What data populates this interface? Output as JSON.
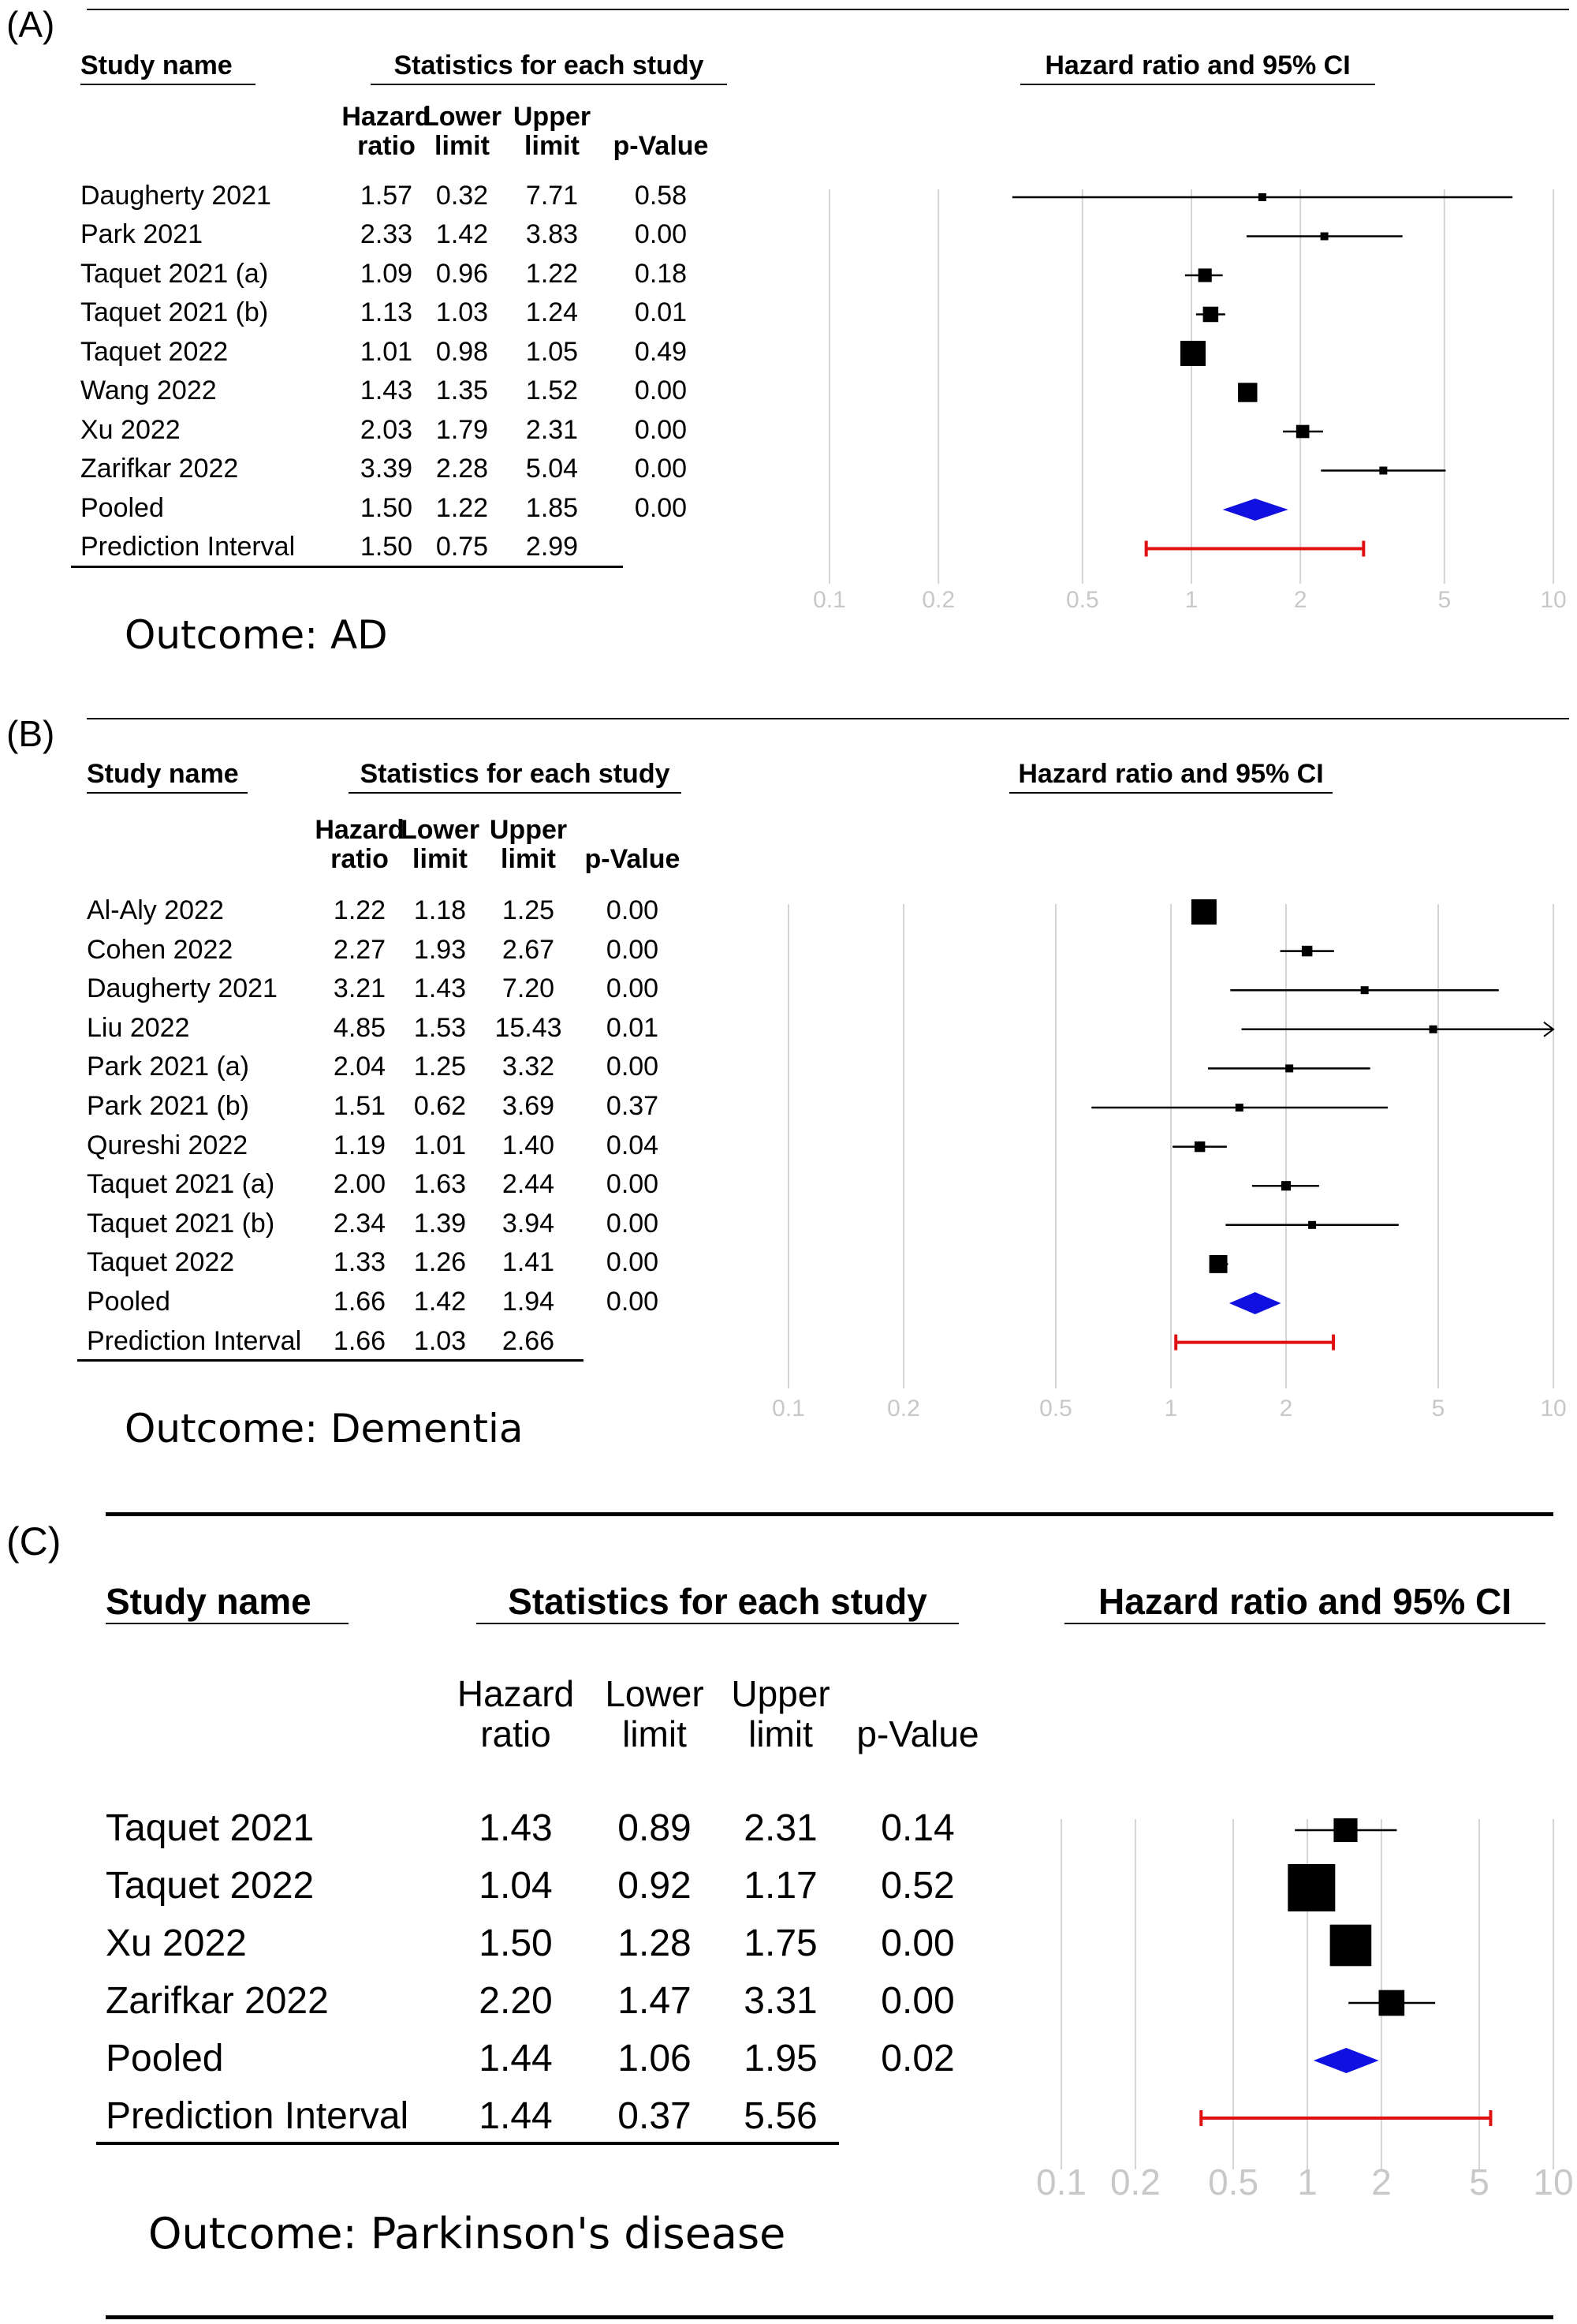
{
  "chart_data": [
    {
      "type": "forest",
      "panel_label": "(A)",
      "headers": {
        "study_name": "Study name",
        "statistics": "Statistics for each study",
        "plot": "Hazard ratio and 95% CI"
      },
      "columns": [
        [
          "Hazard",
          "ratio"
        ],
        [
          "Lower",
          "limit"
        ],
        [
          "Upper",
          "limit"
        ],
        [
          "",
          "p-Value"
        ]
      ],
      "rows": [
        {
          "name": "Daugherty 2021",
          "hr": "1.57",
          "lower": "0.32",
          "upper": "7.71",
          "p": "0.58"
        },
        {
          "name": "Park 2021",
          "hr": "2.33",
          "lower": "1.42",
          "upper": "3.83",
          "p": "0.00"
        },
        {
          "name": "Taquet 2021 (a)",
          "hr": "1.09",
          "lower": "0.96",
          "upper": "1.22",
          "p": "0.18"
        },
        {
          "name": "Taquet 2021 (b)",
          "hr": "1.13",
          "lower": "1.03",
          "upper": "1.24",
          "p": "0.01"
        },
        {
          "name": "Taquet 2022",
          "hr": "1.01",
          "lower": "0.98",
          "upper": "1.05",
          "p": "0.49"
        },
        {
          "name": "Wang 2022",
          "hr": "1.43",
          "lower": "1.35",
          "upper": "1.52",
          "p": "0.00"
        },
        {
          "name": "Xu 2022",
          "hr": "2.03",
          "lower": "1.79",
          "upper": "2.31",
          "p": "0.00"
        },
        {
          "name": "Zarifkar 2022",
          "hr": "3.39",
          "lower": "2.28",
          "upper": "5.04",
          "p": "0.00"
        },
        {
          "name": "Pooled",
          "hr": "1.50",
          "lower": "1.22",
          "upper": "1.85",
          "p": "0.00",
          "pooled": true
        },
        {
          "name": "Prediction Interval",
          "hr": "1.50",
          "lower": "0.75",
          "upper": "2.99",
          "p": "",
          "prediction": true
        }
      ],
      "x_scale": "log",
      "xlim": [
        0.1,
        10
      ],
      "x_ticks": [
        "0.1",
        "0.2",
        "0.5",
        "1",
        "2",
        "5",
        "10"
      ],
      "outcome": "Outcome: AD",
      "colors": {
        "pooled": "#1010e0",
        "prediction": "#e01010",
        "study": "#000000",
        "grid": "#d4d4d4"
      }
    },
    {
      "type": "forest",
      "panel_label": "(B)",
      "headers": {
        "study_name": "Study name",
        "statistics": "Statistics for each study",
        "plot": "Hazard ratio and 95% CI"
      },
      "columns": [
        [
          "Hazard",
          "ratio"
        ],
        [
          "Lower",
          "limit"
        ],
        [
          "Upper",
          "limit"
        ],
        [
          "",
          "p-Value"
        ]
      ],
      "rows": [
        {
          "name": "Al-Aly 2022",
          "hr": "1.22",
          "lower": "1.18",
          "upper": "1.25",
          "p": "0.00"
        },
        {
          "name": "Cohen 2022",
          "hr": "2.27",
          "lower": "1.93",
          "upper": "2.67",
          "p": "0.00"
        },
        {
          "name": "Daugherty 2021",
          "hr": "3.21",
          "lower": "1.43",
          "upper": "7.20",
          "p": "0.00"
        },
        {
          "name": "Liu 2022",
          "hr": "4.85",
          "lower": "1.53",
          "upper": "15.43",
          "p": "0.01"
        },
        {
          "name": "Park 2021 (a)",
          "hr": "2.04",
          "lower": "1.25",
          "upper": "3.32",
          "p": "0.00"
        },
        {
          "name": "Park 2021 (b)",
          "hr": "1.51",
          "lower": "0.62",
          "upper": "3.69",
          "p": "0.37"
        },
        {
          "name": "Qureshi 2022",
          "hr": "1.19",
          "lower": "1.01",
          "upper": "1.40",
          "p": "0.04"
        },
        {
          "name": "Taquet 2021 (a)",
          "hr": "2.00",
          "lower": "1.63",
          "upper": "2.44",
          "p": "0.00"
        },
        {
          "name": "Taquet 2021 (b)",
          "hr": "2.34",
          "lower": "1.39",
          "upper": "3.94",
          "p": "0.00"
        },
        {
          "name": "Taquet 2022",
          "hr": "1.33",
          "lower": "1.26",
          "upper": "1.41",
          "p": "0.00"
        },
        {
          "name": "Pooled",
          "hr": "1.66",
          "lower": "1.42",
          "upper": "1.94",
          "p": "0.00",
          "pooled": true
        },
        {
          "name": "Prediction Interval",
          "hr": "1.66",
          "lower": "1.03",
          "upper": "2.66",
          "p": "",
          "prediction": true
        }
      ],
      "x_scale": "log",
      "xlim": [
        0.1,
        10
      ],
      "x_ticks": [
        "0.1",
        "0.2",
        "0.5",
        "1",
        "2",
        "5",
        "10"
      ],
      "outcome": "Outcome: Dementia",
      "colors": {
        "pooled": "#1010e0",
        "prediction": "#e01010",
        "study": "#000000",
        "grid": "#d4d4d4"
      }
    },
    {
      "type": "forest",
      "panel_label": "(C)",
      "headers": {
        "study_name": "Study name",
        "statistics": "Statistics for each study",
        "plot": "Hazard ratio and 95% CI"
      },
      "columns": [
        [
          "Hazard",
          "ratio"
        ],
        [
          "Lower",
          "limit"
        ],
        [
          "Upper",
          "limit"
        ],
        [
          "",
          "p-Value"
        ]
      ],
      "rows": [
        {
          "name": "Taquet 2021",
          "hr": "1.43",
          "lower": "0.89",
          "upper": "2.31",
          "p": "0.14"
        },
        {
          "name": "Taquet 2022",
          "hr": "1.04",
          "lower": "0.92",
          "upper": "1.17",
          "p": "0.52"
        },
        {
          "name": "Xu 2022",
          "hr": "1.50",
          "lower": "1.28",
          "upper": "1.75",
          "p": "0.00"
        },
        {
          "name": "Zarifkar 2022",
          "hr": "2.20",
          "lower": "1.47",
          "upper": "3.31",
          "p": "0.00"
        },
        {
          "name": "Pooled",
          "hr": "1.44",
          "lower": "1.06",
          "upper": "1.95",
          "p": "0.02",
          "pooled": true
        },
        {
          "name": "Prediction Interval",
          "hr": "1.44",
          "lower": "0.37",
          "upper": "5.56",
          "p": "",
          "prediction": true
        }
      ],
      "x_scale": "log",
      "xlim": [
        0.1,
        10
      ],
      "x_ticks": [
        "0.1",
        "0.2",
        "0.5",
        "1",
        "2",
        "5",
        "10"
      ],
      "outcome": "Outcome: Parkinson's disease",
      "colors": {
        "pooled": "#1010e0",
        "prediction": "#e01010",
        "study": "#000000",
        "grid": "#d4d4d4"
      }
    }
  ]
}
